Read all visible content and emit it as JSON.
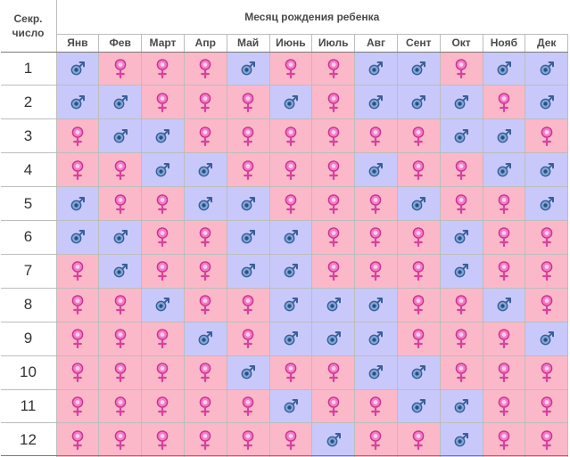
{
  "header": {
    "corner_label": "Секр. число",
    "title": "Месяц рождения ребенка"
  },
  "months": [
    "Янв",
    "Фев",
    "Март",
    "Апр",
    "Май",
    "Июнь",
    "Июль",
    "Авг",
    "Сент",
    "Окт",
    "Нояб",
    "Дек"
  ],
  "rows": [
    {
      "label": "1",
      "cells": [
        "M",
        "F",
        "F",
        "F",
        "M",
        "F",
        "F",
        "M",
        "M",
        "F",
        "M",
        "M"
      ]
    },
    {
      "label": "2",
      "cells": [
        "M",
        "M",
        "F",
        "F",
        "F",
        "M",
        "F",
        "M",
        "M",
        "M",
        "F",
        "M"
      ]
    },
    {
      "label": "3",
      "cells": [
        "F",
        "M",
        "M",
        "F",
        "F",
        "F",
        "F",
        "F",
        "F",
        "M",
        "M",
        "F"
      ]
    },
    {
      "label": "4",
      "cells": [
        "F",
        "F",
        "M",
        "M",
        "F",
        "F",
        "F",
        "M",
        "F",
        "F",
        "M",
        "M"
      ]
    },
    {
      "label": "5",
      "cells": [
        "M",
        "F",
        "F",
        "M",
        "M",
        "F",
        "F",
        "F",
        "M",
        "F",
        "F",
        "M"
      ]
    },
    {
      "label": "6",
      "cells": [
        "M",
        "M",
        "F",
        "F",
        "M",
        "M",
        "F",
        "F",
        "F",
        "M",
        "F",
        "F"
      ]
    },
    {
      "label": "7",
      "cells": [
        "F",
        "M",
        "F",
        "F",
        "M",
        "M",
        "F",
        "F",
        "F",
        "M",
        "F",
        "F"
      ]
    },
    {
      "label": "8",
      "cells": [
        "F",
        "F",
        "M",
        "F",
        "F",
        "M",
        "M",
        "M",
        "F",
        "F",
        "M",
        "F"
      ]
    },
    {
      "label": "9",
      "cells": [
        "F",
        "F",
        "F",
        "M",
        "F",
        "M",
        "M",
        "M",
        "F",
        "F",
        "F",
        "M"
      ]
    },
    {
      "label": "10",
      "cells": [
        "F",
        "F",
        "F",
        "F",
        "M",
        "F",
        "F",
        "M",
        "M",
        "F",
        "F",
        "F"
      ]
    },
    {
      "label": "11",
      "cells": [
        "F",
        "F",
        "F",
        "F",
        "F",
        "M",
        "F",
        "F",
        "M",
        "M",
        "F",
        "F"
      ]
    },
    {
      "label": "12",
      "cells": [
        "F",
        "F",
        "F",
        "F",
        "F",
        "F",
        "M",
        "F",
        "F",
        "M",
        "F",
        "F"
      ]
    }
  ],
  "colors": {
    "boy_bg": "#c9c8fb",
    "girl_bg": "#fbb8c8",
    "boy_icon": "#4a6fa5",
    "girl_icon": "#e64fa8"
  },
  "icons": {
    "M": "male-symbol-icon",
    "F": "female-symbol-icon"
  }
}
